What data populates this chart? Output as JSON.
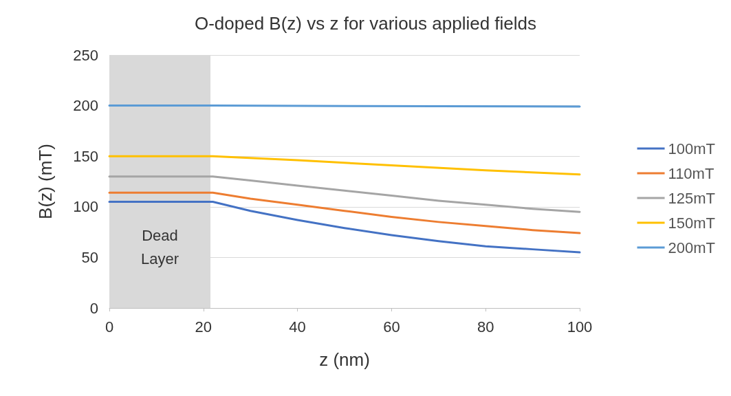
{
  "chart_data": {
    "type": "line",
    "title": "O-doped B(z) vs z for various applied fields",
    "xlabel": "z (nm)",
    "ylabel": "B(z) (mT)",
    "xlim": [
      0,
      100
    ],
    "xticks": [
      0,
      20,
      40,
      60,
      80,
      100
    ],
    "ylim": [
      0,
      250
    ],
    "yticks": [
      0,
      50,
      100,
      150,
      200,
      250
    ],
    "grid": "y",
    "legend": "right",
    "marker": "none",
    "line_style": "solid",
    "bands": [
      {
        "axis": "x",
        "from": 0,
        "to": 21.5,
        "label": "Dead\nLayer",
        "color": "#d9d9d9"
      }
    ],
    "series": [
      {
        "name": "100mT",
        "color": "#4472c4",
        "x": [
          0,
          22,
          30,
          40,
          50,
          60,
          70,
          80,
          90,
          100
        ],
        "values": [
          105,
          105,
          96,
          87,
          79,
          72,
          66,
          61,
          58,
          55
        ]
      },
      {
        "name": "110mT",
        "color": "#ed7d31",
        "x": [
          0,
          22,
          30,
          40,
          50,
          60,
          70,
          80,
          90,
          100
        ],
        "values": [
          114,
          114,
          108,
          102,
          96,
          90,
          85,
          81,
          77,
          74
        ]
      },
      {
        "name": "125mT",
        "color": "#a5a5a5",
        "x": [
          0,
          22,
          30,
          40,
          50,
          60,
          70,
          80,
          90,
          100
        ],
        "values": [
          130,
          130,
          126,
          121,
          116,
          111,
          106,
          102,
          98,
          95
        ]
      },
      {
        "name": "150mT",
        "color": "#ffc000",
        "x": [
          0,
          22,
          40,
          60,
          80,
          100
        ],
        "values": [
          150,
          150,
          146,
          141,
          136,
          132
        ]
      },
      {
        "name": "200mT",
        "color": "#5b9bd5",
        "x": [
          0,
          22,
          100
        ],
        "values": [
          200,
          200,
          199
        ]
      }
    ]
  }
}
